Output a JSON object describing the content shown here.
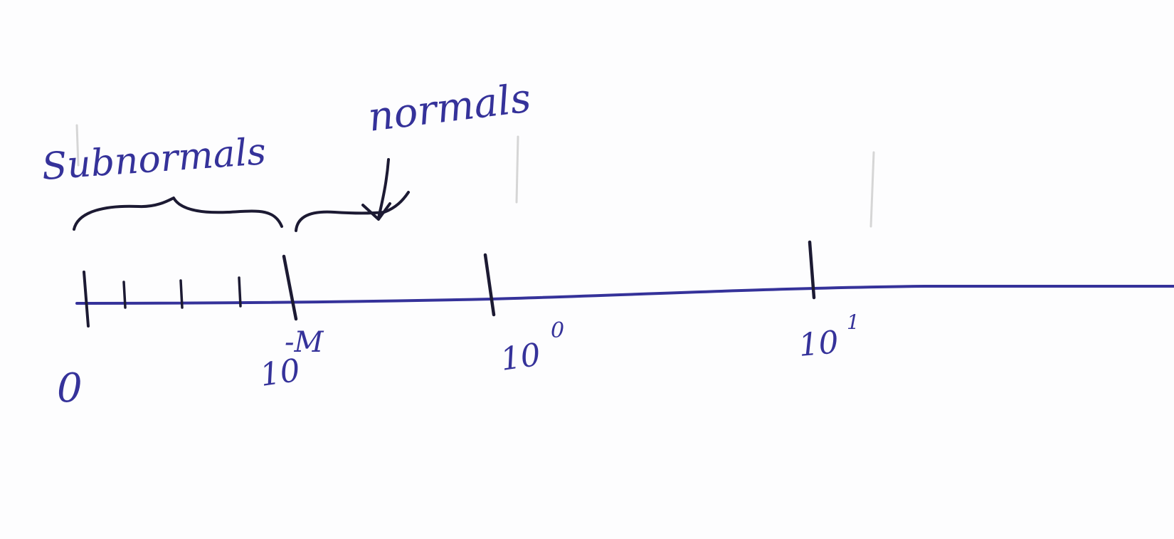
{
  "colors": {
    "paper": "#fdfdfe",
    "ink_blue": "#35329a",
    "ink_dark": "#1c1a33",
    "faint_guides": "#d6d6d6"
  },
  "labels": {
    "subnormals": "Subnormals",
    "normals": "normals"
  },
  "ticks": {
    "zero": "0",
    "min_base": "10",
    "min_exp": "-M",
    "one_base": "10",
    "one_exp": "0",
    "ten_base": "10",
    "ten_exp": "1"
  },
  "annotations": {
    "subnormal_brace": "brace spanning 0 to 10^-M",
    "normals_arrow": "arrow pointing to region after 10^-M"
  }
}
